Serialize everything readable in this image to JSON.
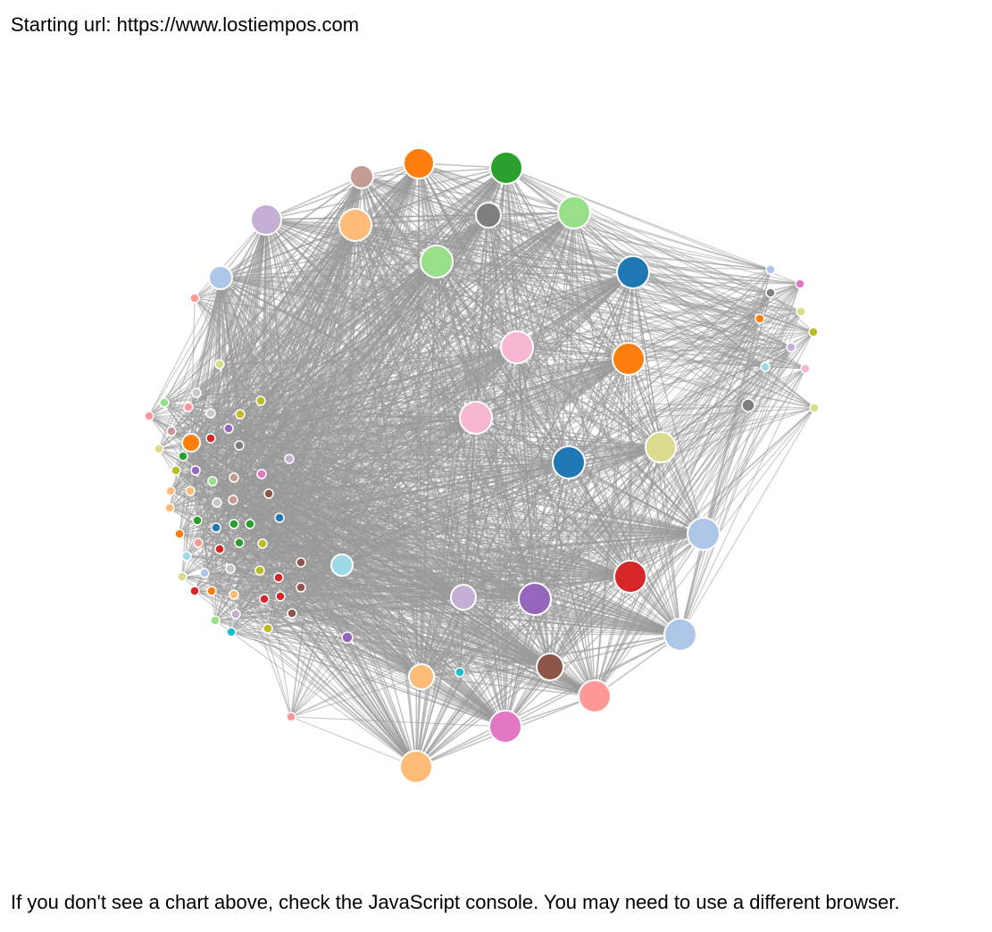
{
  "header": {
    "starting_url": "Starting url: https://www.lostiempos.com"
  },
  "footer": {
    "note": "If you don't see a chart above, check the JavaScript console. You may need to use a different browser."
  },
  "graph": {
    "type": "force-directed-network",
    "edge_color": "#999999",
    "node_stroke": "#ffffff",
    "palette": {
      "blue": "#1f77b4",
      "light_blue": "#aec7e8",
      "orange": "#ff7f0e",
      "light_orange": "#ffbb78",
      "green": "#2ca02c",
      "light_green": "#98df8a",
      "red": "#d62728",
      "light_red": "#ff9896",
      "purple": "#9467bd",
      "light_purple": "#c5b0d5",
      "brown": "#8c564b",
      "light_brown": "#c49c94",
      "pink": "#e377c2",
      "light_pink": "#f7b6d2",
      "gray": "#7f7f7f",
      "light_gray": "#c7c7c7",
      "olive": "#bcbd22",
      "light_olive": "#dbdb8d",
      "cyan": "#17becf",
      "light_cyan": "#9edae5"
    }
  }
}
